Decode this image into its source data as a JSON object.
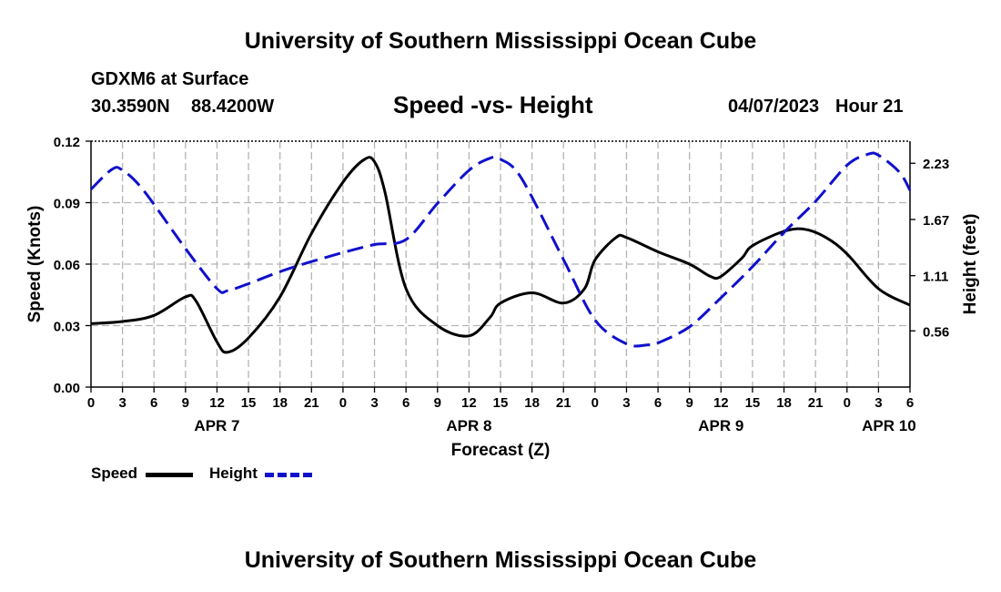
{
  "header": {
    "title": "University of Southern Mississippi Ocean Cube",
    "station": "GDXM6 at Surface",
    "lat": "30.3590N",
    "lon": "88.4200W",
    "plot_title": "Speed -vs- Height",
    "issue_date": "04/07/2023",
    "issue_hour": "Hour 21"
  },
  "footer": {
    "title": "University of Southern Mississippi Ocean Cube"
  },
  "legend": {
    "speed_label": "Speed",
    "height_label": "Height"
  },
  "chart_data": {
    "type": "line",
    "title": "Speed -vs- Height",
    "xlabel": "Forecast (Z)",
    "ylabel": "Speed (Knots)",
    "y2label": "Height (feet)",
    "x_range_hours": [
      0,
      78
    ],
    "x_tick_hours": [
      0,
      3,
      6,
      9,
      12,
      15,
      18,
      21,
      24,
      27,
      30,
      33,
      36,
      39,
      42,
      45,
      48,
      51,
      54,
      57,
      60,
      63,
      66,
      69,
      72,
      75,
      78
    ],
    "x_tick_labels": [
      "0",
      "3",
      "6",
      "9",
      "12",
      "15",
      "18",
      "21",
      "0",
      "3",
      "6",
      "9",
      "12",
      "15",
      "18",
      "21",
      "0",
      "3",
      "6",
      "9",
      "12",
      "15",
      "18",
      "21",
      "0",
      "3",
      "6"
    ],
    "date_labels": [
      {
        "label": "APR 7",
        "hour": 12
      },
      {
        "label": "APR 8",
        "hour": 36
      },
      {
        "label": "APR 9",
        "hour": 60
      },
      {
        "label": "APR 10",
        "hour": 76
      }
    ],
    "y_left": {
      "range": [
        0,
        0.12
      ],
      "ticks": [
        0,
        0.03,
        0.06,
        0.09,
        0.12
      ],
      "tick_labels": [
        "0.00",
        "0.03",
        "0.06",
        "0.09",
        "0.12"
      ]
    },
    "y_right": {
      "range": [
        0,
        2.45
      ],
      "ticks": [
        0.56,
        1.11,
        1.67,
        2.23
      ],
      "tick_labels": [
        "0.56",
        "1.11",
        "1.67",
        "2.23"
      ]
    },
    "series": [
      {
        "name": "Speed",
        "axis": "left",
        "color": "#000000",
        "style": "solid",
        "x": [
          0,
          3,
          6,
          9,
          10,
          12,
          13,
          15,
          18,
          21,
          24,
          26,
          27,
          28,
          30,
          33,
          36,
          38,
          39,
          42,
          45,
          47,
          48,
          50,
          51,
          54,
          57,
          59,
          60,
          62,
          63,
          66,
          68,
          70,
          72,
          75,
          78
        ],
        "y": [
          0.031,
          0.032,
          0.035,
          0.044,
          0.042,
          0.022,
          0.017,
          0.024,
          0.044,
          0.075,
          0.1,
          0.111,
          0.11,
          0.095,
          0.048,
          0.03,
          0.025,
          0.034,
          0.041,
          0.046,
          0.041,
          0.048,
          0.062,
          0.073,
          0.073,
          0.066,
          0.06,
          0.054,
          0.054,
          0.063,
          0.069,
          0.076,
          0.077,
          0.073,
          0.065,
          0.048,
          0.04
        ]
      },
      {
        "name": "Height",
        "axis": "right",
        "color": "#1010cc",
        "style": "dashed",
        "x": [
          0,
          2,
          3,
          5,
          9,
          12,
          13,
          15,
          18,
          21,
          24,
          27,
          30,
          33,
          36,
          38,
          39,
          41,
          45,
          48,
          51,
          53,
          54,
          57,
          60,
          63,
          66,
          69,
          72,
          74,
          75,
          77,
          78
        ],
        "y": [
          1.97,
          2.17,
          2.16,
          1.96,
          1.38,
          0.98,
          0.96,
          1.03,
          1.15,
          1.25,
          1.34,
          1.42,
          1.47,
          1.83,
          2.16,
          2.28,
          2.27,
          2.08,
          1.27,
          0.67,
          0.43,
          0.42,
          0.44,
          0.6,
          0.89,
          1.2,
          1.54,
          1.85,
          2.21,
          2.32,
          2.31,
          2.14,
          1.96
        ]
      }
    ]
  }
}
